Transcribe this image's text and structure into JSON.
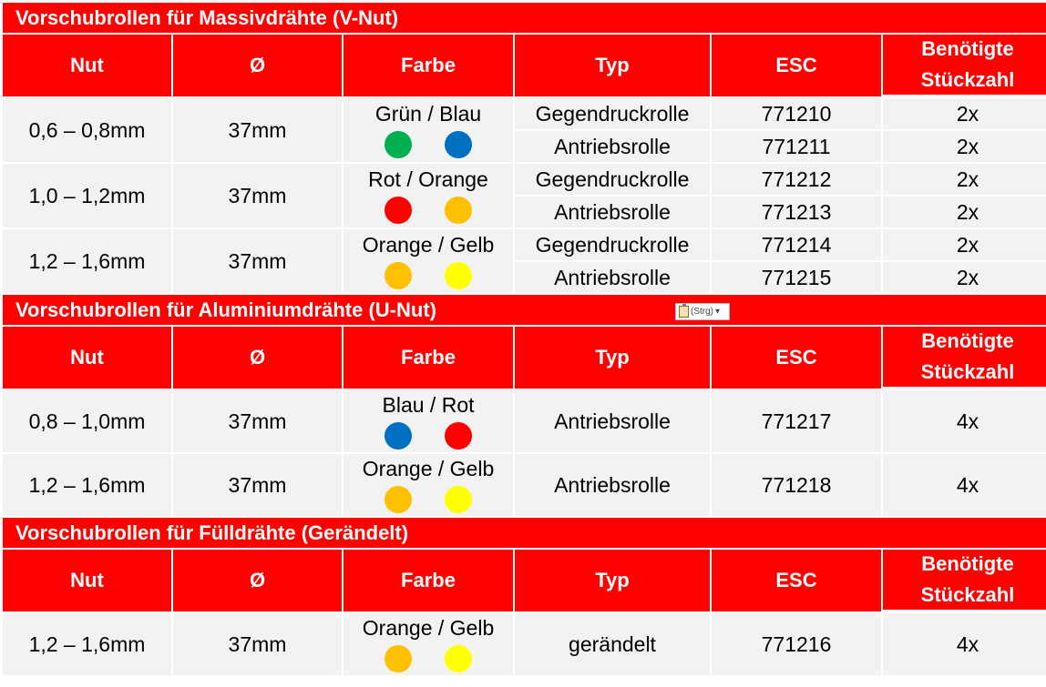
{
  "headers": {
    "nut": "Nut",
    "diameter": "Ø",
    "farbe": "Farbe",
    "typ": "Typ",
    "esc": "ESC",
    "stueck_line1": "Benötigte",
    "stueck_line2": "Stückzahl"
  },
  "sections": [
    {
      "title": "Vorschubrollen für Massivdrähte (V-Nut)",
      "groups": [
        {
          "nut": "0,6 – 0,8mm",
          "diameter": "37mm",
          "farbe": "Grün / Blau",
          "colors": [
            "#00b050",
            "#0070c0"
          ],
          "rows": [
            {
              "typ": "Gegendruckrolle",
              "esc": "771210",
              "qty": "2x"
            },
            {
              "typ": "Antriebsrolle",
              "esc": "771211",
              "qty": "2x"
            }
          ]
        },
        {
          "nut": "1,0 – 1,2mm",
          "diameter": "37mm",
          "farbe": "Rot / Orange",
          "colors": [
            "#ff0000",
            "#ffc000"
          ],
          "rows": [
            {
              "typ": "Gegendruckrolle",
              "esc": "771212",
              "qty": "2x"
            },
            {
              "typ": "Antriebsrolle",
              "esc": "771213",
              "qty": "2x"
            }
          ]
        },
        {
          "nut": "1,2 – 1,6mm",
          "diameter": "37mm",
          "farbe": "Orange / Gelb",
          "colors": [
            "#ffc000",
            "#ffff00"
          ],
          "rows": [
            {
              "typ": "Gegendruckrolle",
              "esc": "771214",
              "qty": "2x"
            },
            {
              "typ": "Antriebsrolle",
              "esc": "771215",
              "qty": "2x"
            }
          ]
        }
      ]
    },
    {
      "title": "Vorschubrollen für Aluminiumdrähte (U-Nut)",
      "groups": [
        {
          "nut": "0,8 – 1,0mm",
          "diameter": "37mm",
          "farbe": "Blau / Rot",
          "colors": [
            "#0070c0",
            "#ff0000"
          ],
          "rows": [
            {
              "typ": "Antriebsrolle",
              "esc": "771217",
              "qty": "4x"
            }
          ]
        },
        {
          "nut": "1,2 – 1,6mm",
          "diameter": "37mm",
          "farbe": "Orange / Gelb",
          "colors": [
            "#ffc000",
            "#ffff00"
          ],
          "rows": [
            {
              "typ": "Antriebsrolle",
              "esc": "771218",
              "qty": "4x"
            }
          ]
        }
      ]
    },
    {
      "title": "Vorschubrollen für Fülldrähte (Gerändelt)",
      "groups": [
        {
          "nut": "1,2 – 1,6mm",
          "diameter": "37mm",
          "farbe": "Orange / Gelb",
          "colors": [
            "#ffc000",
            "#ffff00"
          ],
          "rows": [
            {
              "typ": "gerändelt",
              "esc": "771216",
              "qty": "4x"
            }
          ]
        }
      ]
    }
  ],
  "paste_button": {
    "label": "(Strg)",
    "icon": "clipboard-icon"
  },
  "colors": {
    "header_red": "#ff0000",
    "cell_gray": "#f2f2f2"
  }
}
